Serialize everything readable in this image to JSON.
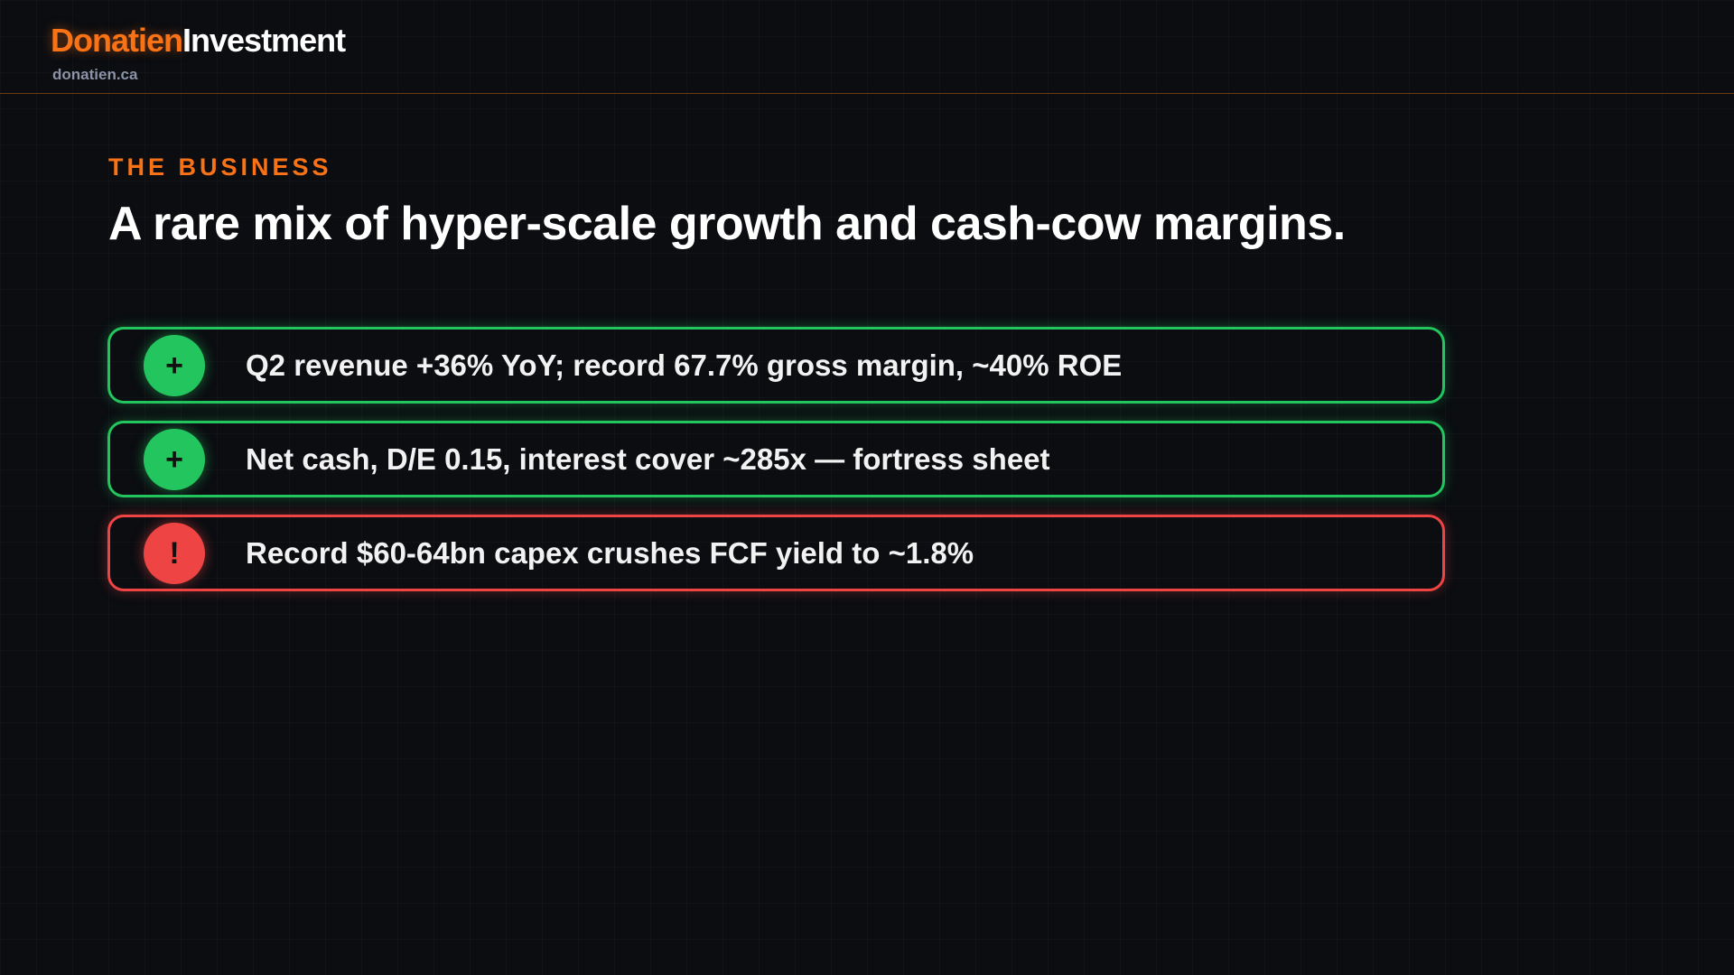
{
  "header": {
    "brand_primary": "Donatien",
    "brand_secondary": "Investment",
    "url": "donatien.ca"
  },
  "section": {
    "eyebrow": "THE BUSINESS",
    "title": "A rare mix of hyper-scale growth and cash-cow margins."
  },
  "items": [
    {
      "icon": "+",
      "text": "Q2 revenue +36% YoY; record 67.7% gross margin, ~40% ROE",
      "color": "#22c55e"
    },
    {
      "icon": "+",
      "text": "Net cash, D/E 0.15, interest cover ~285x — fortress sheet",
      "color": "#22c55e"
    },
    {
      "icon": "!",
      "text": "Record $60-64bn capex crushes FCF yield to ~1.8%",
      "color": "#ef4444"
    }
  ]
}
